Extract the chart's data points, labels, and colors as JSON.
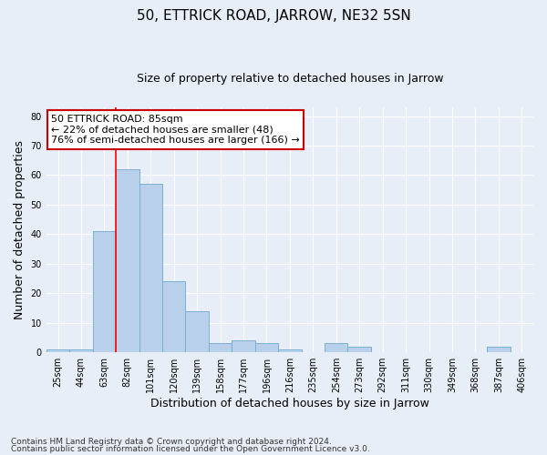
{
  "title_line1": "50, ETTRICK ROAD, JARROW, NE32 5SN",
  "title_line2": "Size of property relative to detached houses in Jarrow",
  "xlabel": "Distribution of detached houses by size in Jarrow",
  "ylabel": "Number of detached properties",
  "categories": [
    "25sqm",
    "44sqm",
    "63sqm",
    "82sqm",
    "101sqm",
    "120sqm",
    "139sqm",
    "158sqm",
    "177sqm",
    "196sqm",
    "216sqm",
    "235sqm",
    "254sqm",
    "273sqm",
    "292sqm",
    "311sqm",
    "330sqm",
    "349sqm",
    "368sqm",
    "387sqm",
    "406sqm"
  ],
  "values": [
    1,
    1,
    41,
    62,
    57,
    24,
    14,
    3,
    4,
    3,
    1,
    0,
    3,
    2,
    0,
    0,
    0,
    0,
    0,
    2,
    0
  ],
  "bar_color": "#b8d0ea",
  "bar_edge_color": "#7aafd4",
  "red_line_index": 3,
  "ylim": [
    0,
    83
  ],
  "yticks": [
    0,
    10,
    20,
    30,
    40,
    50,
    60,
    70,
    80
  ],
  "annotation_text": "50 ETTRICK ROAD: 85sqm\n← 22% of detached houses are smaller (48)\n76% of semi-detached houses are larger (166) →",
  "annotation_box_facecolor": "#ffffff",
  "annotation_box_edgecolor": "#cc0000",
  "footnote1": "Contains HM Land Registry data © Crown copyright and database right 2024.",
  "footnote2": "Contains public sector information licensed under the Open Government Licence v3.0.",
  "background_color": "#e8eef8",
  "grid_color": "#ffffff",
  "title1_fontsize": 11,
  "title2_fontsize": 9,
  "ylabel_fontsize": 9,
  "xlabel_fontsize": 9,
  "tick_fontsize": 7,
  "annot_fontsize": 8,
  "footnote_fontsize": 6.5
}
